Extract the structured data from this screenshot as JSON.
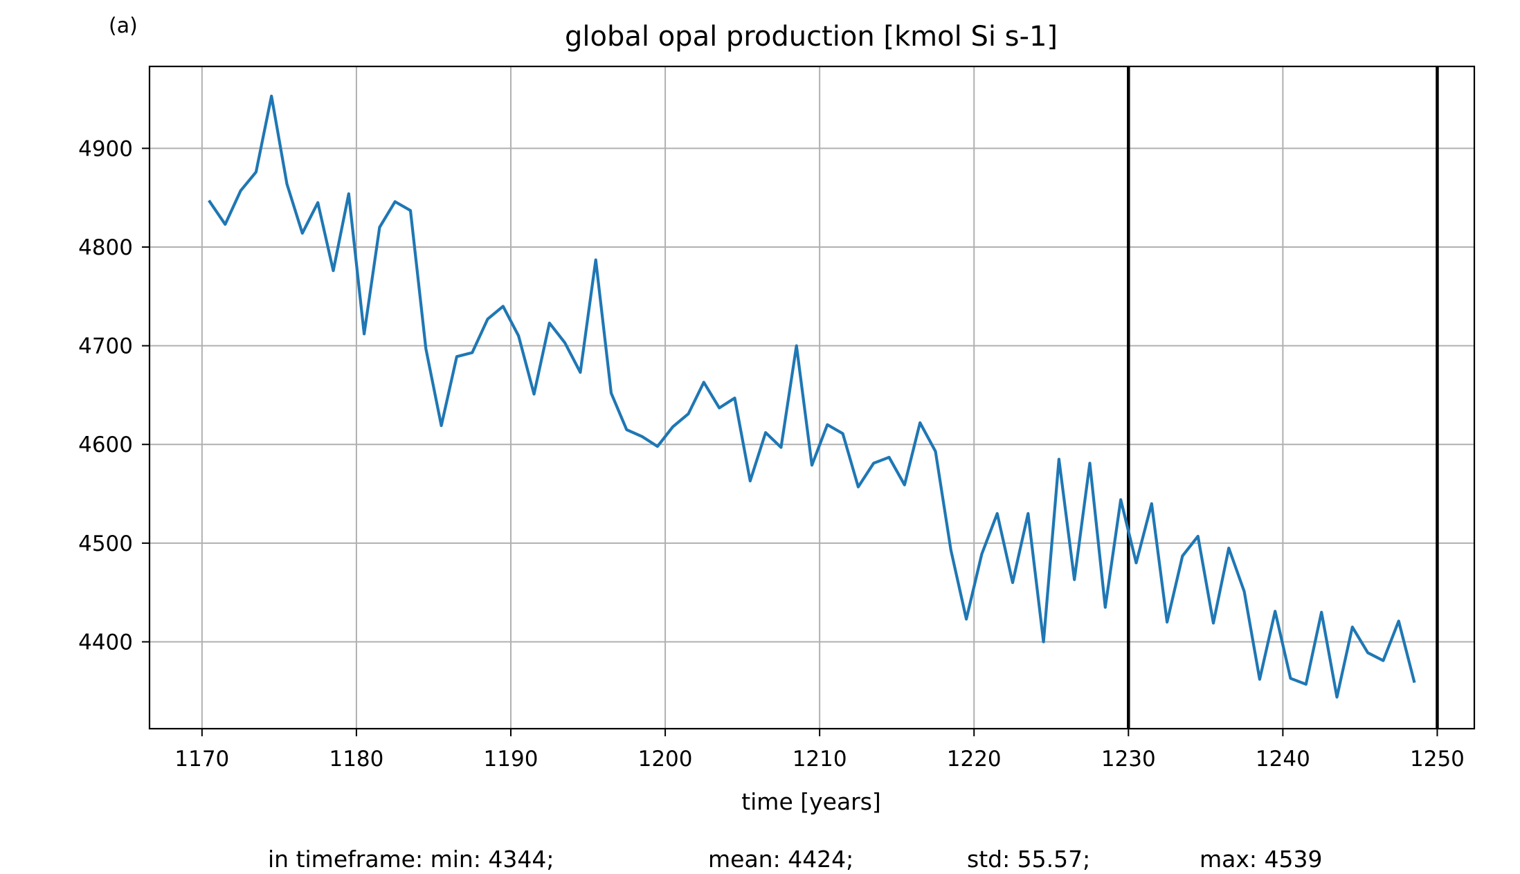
{
  "chart_data": {
    "type": "line",
    "panel_label": "(a)",
    "title": "global opal production [kmol Si s-1]",
    "xlabel": "time [years]",
    "ylabel": "",
    "xlim": [
      1166.6,
      1252.4
    ],
    "ylim": [
      4312,
      4983
    ],
    "xticks": [
      1170,
      1180,
      1190,
      1200,
      1210,
      1220,
      1230,
      1240,
      1250
    ],
    "yticks": [
      4400,
      4500,
      4600,
      4700,
      4800,
      4900
    ],
    "grid": true,
    "line_color": "#1f77b4",
    "vline_color": "#000000",
    "vlines": [
      1230,
      1250
    ],
    "series": [
      {
        "x": [
          1170.5,
          1171.5,
          1172.5,
          1173.5,
          1174.5,
          1175.5,
          1176.5,
          1177.5,
          1178.5,
          1179.5,
          1180.5,
          1181.5,
          1182.5,
          1183.5,
          1184.5,
          1185.5,
          1186.5,
          1187.5,
          1188.5,
          1189.5,
          1190.5,
          1191.5,
          1192.5,
          1193.5,
          1194.5,
          1195.5,
          1196.5,
          1197.5,
          1198.5,
          1199.5,
          1200.5,
          1201.5,
          1202.5,
          1203.5,
          1204.5,
          1205.5,
          1206.5,
          1207.5,
          1208.5,
          1209.5,
          1210.5,
          1211.5,
          1212.5,
          1213.5,
          1214.5,
          1215.5,
          1216.5,
          1217.5,
          1218.5,
          1219.5,
          1220.5,
          1221.5,
          1222.5,
          1223.5,
          1224.5,
          1225.5,
          1226.5,
          1227.5,
          1228.5,
          1229.5,
          1230.5,
          1231.5,
          1232.5,
          1233.5,
          1234.5,
          1235.5,
          1236.5,
          1237.5,
          1238.5,
          1239.5,
          1240.5,
          1241.5,
          1242.5,
          1243.5,
          1244.5,
          1245.5,
          1246.5,
          1247.5,
          1248.5
        ],
        "values": [
          4846,
          4823,
          4857,
          4876,
          4953,
          4864,
          4814,
          4845,
          4776,
          4854,
          4712,
          4820,
          4846,
          4837,
          4697,
          4619,
          4689,
          4693,
          4727,
          4740,
          4710,
          4651,
          4723,
          4703,
          4673,
          4787,
          4652,
          4615,
          4608,
          4598,
          4618,
          4631,
          4663,
          4637,
          4647,
          4563,
          4612,
          4597,
          4700,
          4579,
          4620,
          4611,
          4557,
          4581,
          4587,
          4559,
          4622,
          4593,
          4493,
          4423,
          4489,
          4530,
          4460,
          4530,
          4400,
          4585,
          4463,
          4581,
          4435,
          4544,
          4480,
          4540,
          4420,
          4487,
          4507,
          4419,
          4495,
          4451,
          4362,
          4431,
          4363,
          4357,
          4430,
          4344,
          4415,
          4389,
          4381,
          4421,
          4360
        ]
      }
    ],
    "stats": {
      "min": "in timeframe: min: 4344;",
      "mean": "mean: 4424;",
      "std": "std: 55.57;",
      "max": "max: 4539"
    }
  }
}
